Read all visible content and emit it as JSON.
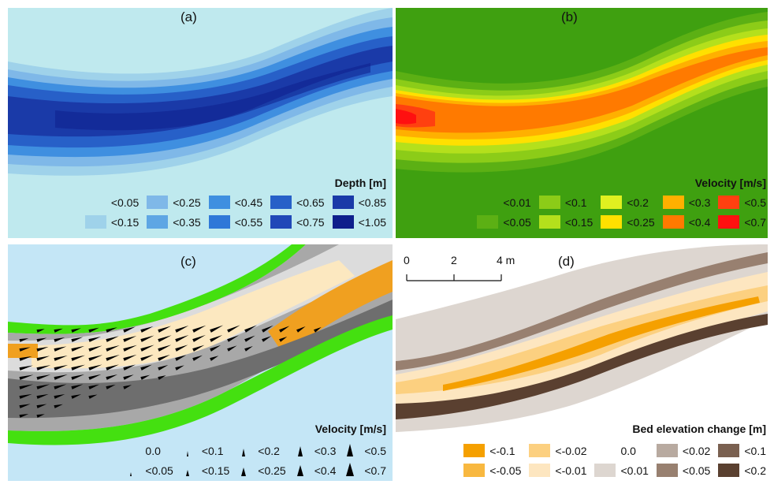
{
  "panels": {
    "a": {
      "label": "(a)",
      "legend_title": "Depth [m]",
      "background": "#bfe9ee",
      "items": [
        {
          "label": "<0.05",
          "color": "#bfe9ee"
        },
        {
          "label": "<0.25",
          "color": "#7fb8e8"
        },
        {
          "label": "<0.45",
          "color": "#3f8fe0"
        },
        {
          "label": "<0.65",
          "color": "#2760c8"
        },
        {
          "label": "<0.85",
          "color": "#1a3aa8"
        },
        {
          "label": "<0.15",
          "color": "#9fd2ea"
        },
        {
          "label": "<0.35",
          "color": "#5ea6e4"
        },
        {
          "label": "<0.55",
          "color": "#2f78d8"
        },
        {
          "label": "<0.75",
          "color": "#2048b8"
        },
        {
          "label": "<1.05",
          "color": "#0e1f8c"
        }
      ]
    },
    "b": {
      "label": "(b)",
      "legend_title": "Velocity [m/s]",
      "background": "#3fa010",
      "items": [
        {
          "label": "<0.01",
          "color": "#3fa010"
        },
        {
          "label": "<0.1",
          "color": "#8ccc18"
        },
        {
          "label": "<0.2",
          "color": "#e0f020"
        },
        {
          "label": "<0.3",
          "color": "#ffb000"
        },
        {
          "label": "<0.5",
          "color": "#ff4010"
        },
        {
          "label": "<0.05",
          "color": "#5cb014"
        },
        {
          "label": "<0.15",
          "color": "#b4e01c"
        },
        {
          "label": "<0.25",
          "color": "#ffe000"
        },
        {
          "label": "<0.4",
          "color": "#ff7a00"
        },
        {
          "label": "<0.7",
          "color": "#ff1010"
        }
      ]
    },
    "c": {
      "label": "(c)",
      "legend_title": "Velocity [m/s]",
      "background": "#c4e6f6",
      "items": [
        {
          "label": "0.0",
          "size": 0
        },
        {
          "label": "<0.1",
          "size": 1
        },
        {
          "label": "<0.2",
          "size": 2
        },
        {
          "label": "<0.3",
          "size": 3
        },
        {
          "label": "<0.5",
          "size": 4
        },
        {
          "label": "<0.05",
          "size": 0.5
        },
        {
          "label": "<0.15",
          "size": 1.5
        },
        {
          "label": "<0.25",
          "size": 2.5
        },
        {
          "label": "<0.4",
          "size": 3.5
        },
        {
          "label": "<0.7",
          "size": 4.5
        }
      ]
    },
    "d": {
      "label": "(d)",
      "legend_title": "Bed elevation change [m]",
      "background": "#ffffff",
      "scale_labels": [
        "0",
        "2",
        "4 m"
      ],
      "items": [
        {
          "label": "<-0.1",
          "color": "#f5a000"
        },
        {
          "label": "<-0.02",
          "color": "#fcd080"
        },
        {
          "label": "0.0",
          "color": "#ffffff"
        },
        {
          "label": "<0.02",
          "color": "#b8aaa0"
        },
        {
          "label": "<0.1",
          "color": "#7a6050"
        },
        {
          "label": "<-0.05",
          "color": "#f8b840"
        },
        {
          "label": "<-0.01",
          "color": "#fde6c0"
        },
        {
          "label": "<0.01",
          "color": "#ddd6d0"
        },
        {
          "label": "<0.05",
          "color": "#988070"
        },
        {
          "label": "<0.2",
          "color": "#5a4030"
        }
      ]
    }
  }
}
